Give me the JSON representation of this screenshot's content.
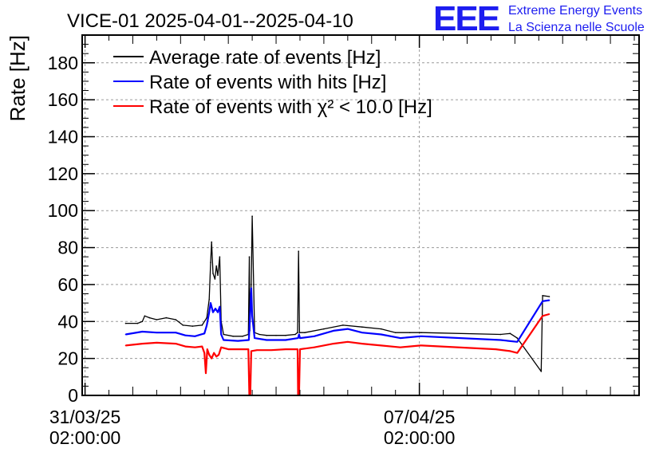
{
  "chart_data": {
    "type": "line",
    "title": "VICE-01 2025-04-01--2025-04-10",
    "xlabel": "",
    "ylabel": "Rate [Hz]",
    "ylim": [
      0,
      195
    ],
    "xlim_days": [
      -0.06,
      11.6
    ],
    "yticks": [
      0,
      20,
      40,
      60,
      80,
      100,
      120,
      140,
      160,
      180
    ],
    "xticks": [
      {
        "day": 0,
        "date": "31/03/25",
        "time": "02:00:00"
      },
      {
        "day": 7,
        "date": "07/04/25",
        "time": "02:00:00"
      }
    ],
    "grid": true,
    "legend_position": "top-left",
    "series": [
      {
        "name": "Average rate of events [Hz]",
        "color": "#000000",
        "points": [
          [
            0.85,
            39
          ],
          [
            1.1,
            39
          ],
          [
            1.2,
            40
          ],
          [
            1.25,
            43
          ],
          [
            1.35,
            42
          ],
          [
            1.5,
            41
          ],
          [
            1.7,
            42
          ],
          [
            1.9,
            41
          ],
          [
            2.05,
            38
          ],
          [
            2.25,
            37.5
          ],
          [
            2.45,
            38
          ],
          [
            2.55,
            42
          ],
          [
            2.6,
            52
          ],
          [
            2.63,
            72
          ],
          [
            2.65,
            83
          ],
          [
            2.68,
            66
          ],
          [
            2.72,
            63
          ],
          [
            2.75,
            70
          ],
          [
            2.78,
            65
          ],
          [
            2.82,
            75
          ],
          [
            2.85,
            40
          ],
          [
            2.9,
            33
          ],
          [
            3.1,
            32
          ],
          [
            3.3,
            32
          ],
          [
            3.42,
            33
          ],
          [
            3.44,
            75
          ],
          [
            3.45,
            35
          ],
          [
            3.48,
            60
          ],
          [
            3.5,
            97
          ],
          [
            3.53,
            60
          ],
          [
            3.55,
            34
          ],
          [
            3.65,
            33
          ],
          [
            3.8,
            32.5
          ],
          [
            4.0,
            32.5
          ],
          [
            4.2,
            32.5
          ],
          [
            4.4,
            33
          ],
          [
            4.45,
            34
          ],
          [
            4.47,
            78
          ],
          [
            4.49,
            34
          ],
          [
            4.6,
            34
          ],
          [
            5.0,
            36
          ],
          [
            5.4,
            38
          ],
          [
            5.8,
            37
          ],
          [
            6.2,
            36
          ],
          [
            6.5,
            34
          ],
          [
            6.8,
            34
          ],
          [
            7.02,
            34
          ],
          [
            7.05,
            34
          ],
          [
            8.7,
            33
          ],
          [
            8.9,
            33.5
          ],
          [
            9.05,
            31
          ],
          [
            9.55,
            13
          ],
          [
            9.58,
            54
          ],
          [
            9.72,
            53.5
          ]
        ]
      },
      {
        "name": "Rate of events with hits [Hz]",
        "color": "#0000ff",
        "points": [
          [
            0.85,
            33
          ],
          [
            1.2,
            34.5
          ],
          [
            1.5,
            34
          ],
          [
            1.9,
            34
          ],
          [
            2.1,
            32.5
          ],
          [
            2.3,
            32
          ],
          [
            2.5,
            33.5
          ],
          [
            2.55,
            38
          ],
          [
            2.6,
            45
          ],
          [
            2.63,
            50
          ],
          [
            2.68,
            45
          ],
          [
            2.73,
            47
          ],
          [
            2.78,
            45
          ],
          [
            2.82,
            48
          ],
          [
            2.85,
            33
          ],
          [
            2.9,
            30
          ],
          [
            3.2,
            29.5
          ],
          [
            3.43,
            30
          ],
          [
            3.45,
            40
          ],
          [
            3.48,
            58
          ],
          [
            3.5,
            43
          ],
          [
            3.55,
            31
          ],
          [
            3.8,
            30
          ],
          [
            4.2,
            30
          ],
          [
            4.46,
            31
          ],
          [
            4.48,
            33
          ],
          [
            4.5,
            31
          ],
          [
            4.8,
            32
          ],
          [
            5.2,
            35
          ],
          [
            5.5,
            36
          ],
          [
            5.8,
            34
          ],
          [
            6.2,
            33
          ],
          [
            6.6,
            31
          ],
          [
            7.02,
            32
          ],
          [
            7.05,
            32
          ],
          [
            8.7,
            30
          ],
          [
            9.05,
            29
          ],
          [
            9.58,
            51
          ],
          [
            9.72,
            51.5
          ]
        ]
      },
      {
        "name": "Rate of events with χ² < 10.0 [Hz]",
        "color": "#ff0000",
        "points": [
          [
            0.85,
            27
          ],
          [
            1.2,
            28
          ],
          [
            1.5,
            28.5
          ],
          [
            1.9,
            28
          ],
          [
            2.1,
            26.5
          ],
          [
            2.3,
            26
          ],
          [
            2.45,
            26.5
          ],
          [
            2.5,
            23
          ],
          [
            2.53,
            12
          ],
          [
            2.56,
            25
          ],
          [
            2.6,
            22
          ],
          [
            2.65,
            20
          ],
          [
            2.7,
            23
          ],
          [
            2.75,
            21
          ],
          [
            2.8,
            22
          ],
          [
            2.85,
            26
          ],
          [
            3.0,
            25
          ],
          [
            3.2,
            25
          ],
          [
            3.42,
            25
          ],
          [
            3.44,
            0
          ],
          [
            3.46,
            0
          ],
          [
            3.48,
            24
          ],
          [
            3.6,
            24.5
          ],
          [
            3.9,
            24.5
          ],
          [
            4.2,
            25
          ],
          [
            4.45,
            25
          ],
          [
            4.46,
            0
          ],
          [
            4.48,
            0
          ],
          [
            4.5,
            25
          ],
          [
            4.8,
            26
          ],
          [
            5.2,
            28
          ],
          [
            5.5,
            29
          ],
          [
            5.8,
            28
          ],
          [
            6.2,
            27
          ],
          [
            6.6,
            26
          ],
          [
            7.02,
            27
          ],
          [
            7.05,
            27
          ],
          [
            8.6,
            25
          ],
          [
            8.9,
            24
          ],
          [
            9.05,
            23
          ],
          [
            9.58,
            43
          ],
          [
            9.72,
            44
          ]
        ]
      }
    ],
    "logo": {
      "mark": "EEE",
      "line1": "Extreme Energy Events",
      "line2": "La Scienza nelle Scuole"
    }
  }
}
